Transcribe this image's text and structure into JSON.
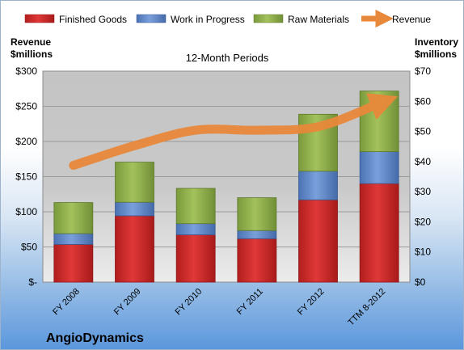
{
  "chart_data": {
    "type": "bar",
    "stacked": true,
    "title": "12-Month Periods",
    "brand": "AngioDynamics",
    "categories": [
      "FY 2008",
      "FY 2009",
      "FY 2010",
      "FY 2011",
      "FY 2012",
      "TTM 8-2012"
    ],
    "series": [
      {
        "name": "Finished Goods",
        "axis": "right",
        "color": "#d42b2b",
        "values": [
          12.5,
          22,
          15.7,
          14.4,
          27.3,
          32.7
        ]
      },
      {
        "name": "Work in Progress",
        "axis": "right",
        "color": "#5f88c9",
        "values": [
          3.6,
          4.5,
          3.7,
          2.7,
          9.5,
          10.6
        ]
      },
      {
        "name": "Raw Materials",
        "axis": "right",
        "color": "#8faf4c",
        "values": [
          10.3,
          13.3,
          11.7,
          10.9,
          18.9,
          20.1
        ]
      }
    ],
    "line_series": {
      "name": "Revenue",
      "axis": "left",
      "color": "#e8883a",
      "values": [
        166,
        194,
        216,
        216,
        221,
        254
      ]
    },
    "left_axis": {
      "title_line1": "Revenue",
      "title_line2": "$millions",
      "ylim": [
        0,
        300
      ],
      "ticks": [
        0,
        50,
        100,
        150,
        200,
        250,
        300
      ],
      "tick_labels": [
        "$-",
        "$50",
        "$100",
        "$150",
        "$200",
        "$250",
        "$300"
      ]
    },
    "right_axis": {
      "title_line1": "Inventory",
      "title_line2": "$millions",
      "ylim": [
        0,
        70
      ],
      "ticks": [
        0,
        10,
        20,
        30,
        40,
        50,
        60,
        70
      ],
      "tick_labels": [
        "$0",
        "$10",
        "$20",
        "$30",
        "$40",
        "$50",
        "$60",
        "$70"
      ]
    },
    "grid": true,
    "legend_position": "top"
  }
}
